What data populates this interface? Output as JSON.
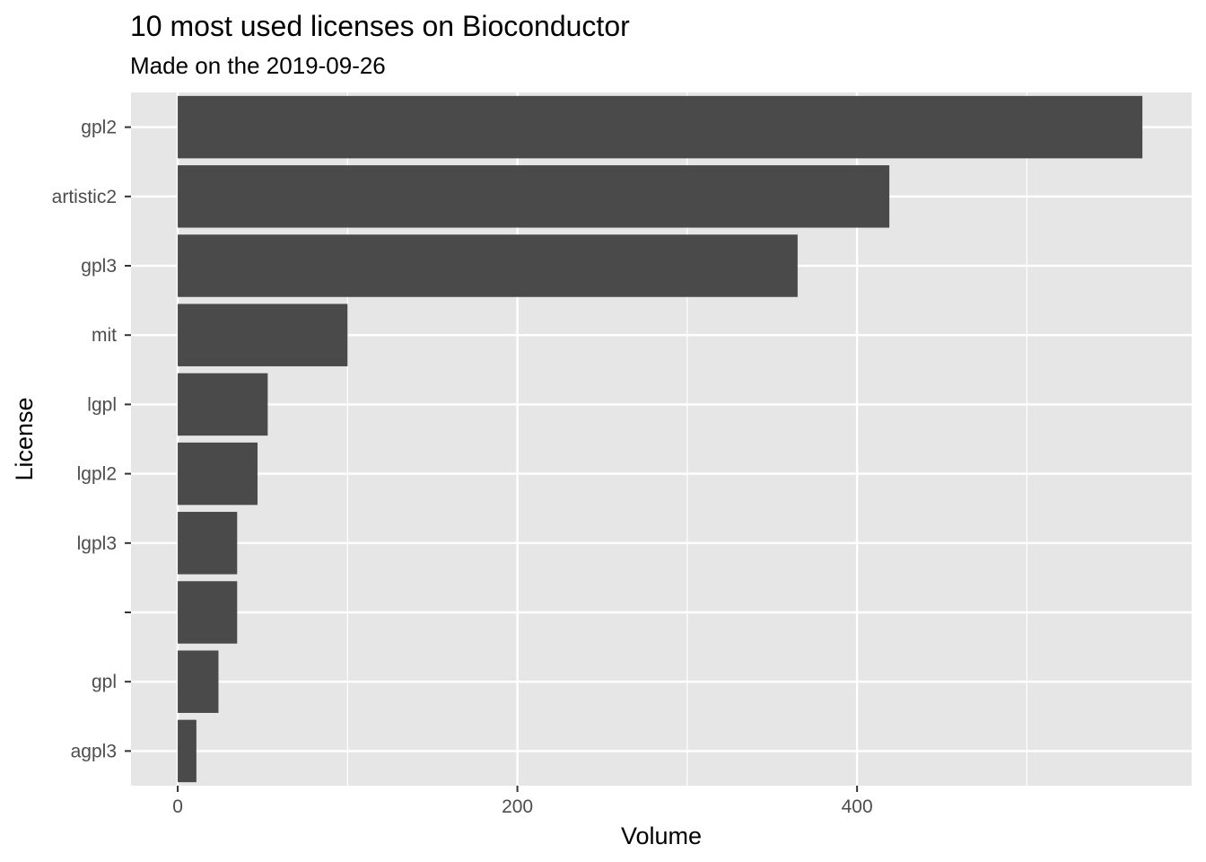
{
  "chart_data": {
    "type": "bar",
    "orientation": "horizontal",
    "title": "10 most used licenses on Bioconductor",
    "subtitle": "Made on the 2019-09-26",
    "xlabel": "Volume",
    "ylabel": "License",
    "categories": [
      "gpl2",
      "artistic2",
      "gpl3",
      "mit",
      "lgpl",
      "lgpl2",
      "lgpl3",
      "",
      "gpl",
      "agpl3"
    ],
    "values": [
      568,
      419,
      365,
      100,
      53,
      47,
      35,
      35,
      24,
      11
    ],
    "x_ticks": [
      0,
      200,
      400
    ],
    "xlim": [
      -27.5,
      597
    ],
    "grid": true,
    "colors": {
      "bar": "#4a4a4a",
      "panel": "#e6e6e6",
      "grid": "#ffffff",
      "tick_label": "#4d4d4d",
      "tick_mark": "#333333"
    }
  }
}
